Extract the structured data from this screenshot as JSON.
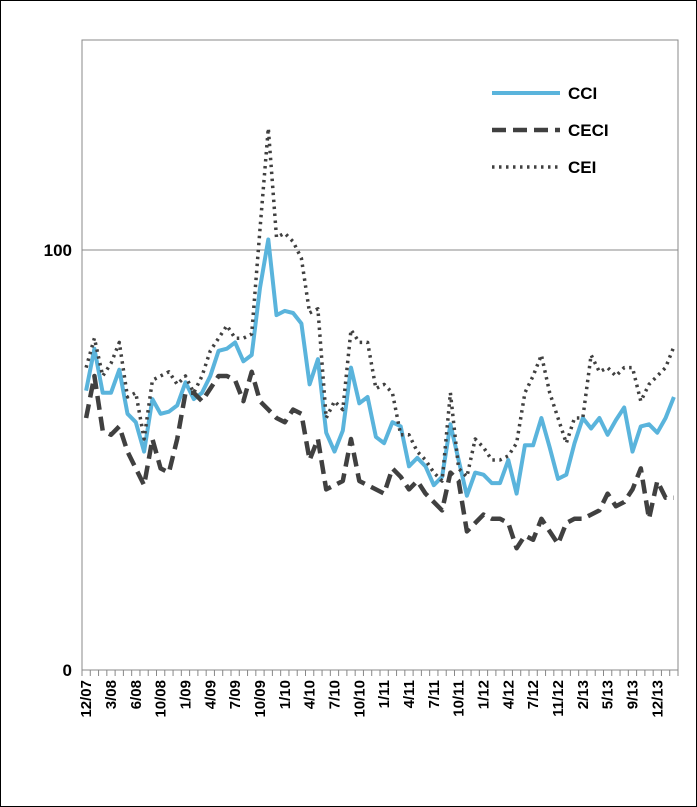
{
  "chart_data": {
    "type": "line",
    "categories": [
      "12/07",
      null,
      null,
      "3/08",
      null,
      null,
      "6/08",
      null,
      null,
      "10/08",
      null,
      null,
      "1/09",
      null,
      null,
      "4/09",
      null,
      null,
      "7/09",
      null,
      null,
      "10/09",
      null,
      null,
      "1/10",
      null,
      null,
      "4/10",
      null,
      null,
      "7/10",
      null,
      null,
      "10/10",
      null,
      null,
      "1/11",
      null,
      null,
      "4/11",
      null,
      null,
      "7/11",
      null,
      null,
      "10/11",
      null,
      null,
      "1/12",
      null,
      null,
      "4/12",
      null,
      null,
      "7/12",
      null,
      null,
      "11/12",
      null,
      null,
      "2/13",
      null,
      null,
      "5/13",
      null,
      null,
      "9/13",
      null,
      null,
      "12/13",
      null,
      null
    ],
    "series": [
      {
        "name": "CCI",
        "color": "#5ab4dc",
        "dash": "solid",
        "values": [
          66.5,
          76.5,
          66,
          66,
          71.5,
          61,
          59,
          52,
          64.5,
          61,
          61.5,
          63,
          68.5,
          64.5,
          66,
          70,
          76,
          76.5,
          78,
          73.5,
          75,
          91,
          102.5,
          84.5,
          85.5,
          85,
          82.5,
          68,
          74,
          56.5,
          52,
          57,
          72,
          63.5,
          65,
          55.5,
          54,
          59,
          58,
          48.5,
          50.5,
          48.5,
          44,
          46,
          58.5,
          50,
          41.5,
          47,
          46.5,
          44.5,
          44.5,
          50,
          42,
          53.5,
          53.5,
          60,
          53,
          45.5,
          46.5,
          54,
          60,
          57.5,
          60,
          56,
          59.5,
          62.5,
          52,
          58,
          58.5,
          56.5,
          60,
          65
        ]
      },
      {
        "name": "CECI",
        "color": "#404040",
        "dash": "dashed",
        "values": [
          60,
          70,
          57,
          56,
          58,
          52,
          48,
          44,
          55,
          48,
          47,
          55,
          66,
          66,
          64,
          67,
          70,
          70,
          69,
          64,
          71,
          64,
          62,
          60,
          59,
          62,
          61,
          50,
          55,
          43,
          44,
          45,
          55,
          45,
          44,
          43,
          42,
          48,
          46,
          43,
          45,
          42,
          40,
          38,
          47,
          45,
          33,
          35,
          37,
          36,
          36,
          35,
          29,
          32,
          31,
          36,
          33,
          30,
          35,
          36,
          36,
          37,
          38,
          42,
          39,
          40,
          43,
          48,
          36,
          45,
          41,
          41
        ]
      },
      {
        "name": "CEI",
        "color": "#404040",
        "dash": "dotted",
        "values": [
          72,
          79,
          70,
          73,
          78,
          65,
          66,
          55,
          69,
          70,
          71,
          68,
          70,
          66,
          70,
          76,
          79,
          82,
          79,
          79,
          80,
          105,
          129,
          103,
          104,
          102,
          98,
          85,
          86,
          60,
          64,
          62,
          81,
          78,
          78,
          67,
          68,
          66,
          56,
          56,
          52,
          50,
          47,
          45,
          66,
          48,
          46,
          55,
          53,
          50,
          50,
          51,
          54,
          66,
          70,
          75,
          66,
          60,
          54,
          60,
          60,
          75,
          71,
          72,
          70,
          72,
          72,
          64,
          68,
          70,
          72,
          77
        ]
      }
    ],
    "ylim": [
      0,
      150
    ],
    "yticks": [
      0,
      100
    ],
    "grid": true,
    "legend": "top-right"
  }
}
